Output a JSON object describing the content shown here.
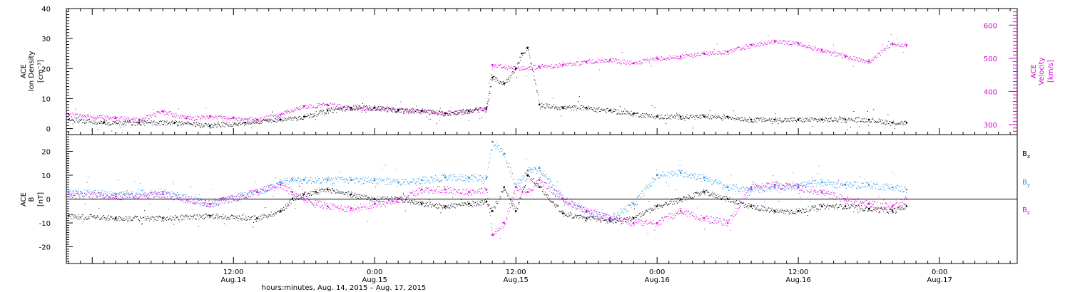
{
  "colors": {
    "black": "#000000",
    "magenta": "#d400d4",
    "blue": "#1e8fe6",
    "axis": "#000000"
  },
  "x_axis": {
    "major_ticks": [
      {
        "time": "12:00",
        "date": "Aug.14",
        "hours": 12
      },
      {
        "time": "0:00",
        "date": "Aug.15",
        "hours": 24
      },
      {
        "time": "12:00",
        "date": "Aug.15",
        "hours": 36
      },
      {
        "time": "0:00",
        "date": "Aug.16",
        "hours": 48
      },
      {
        "time": "12:00",
        "date": "Aug.16",
        "hours": 60
      },
      {
        "time": "0:00",
        "date": "Aug.17",
        "hours": 72
      }
    ],
    "range_hours": [
      -2.2,
      78.6
    ],
    "caption": "hours:minutes, Aug. 14, 2015 – Aug. 17, 2015"
  },
  "chart_data": [
    {
      "type": "scatter",
      "panel": "top",
      "left_label": {
        "line1": "ACE",
        "line2": "Ion Density",
        "line3": "[cm⁻³]"
      },
      "right_label": {
        "line1": "ACE",
        "line2": "Velocity",
        "line3": "[km/s]"
      },
      "ylim_left": [
        -2,
        40
      ],
      "yticks_left": [
        0,
        10,
        20,
        30,
        40
      ],
      "ylim_right": [
        270,
        650
      ],
      "yticks_right": [
        300,
        400,
        500,
        600
      ],
      "series": [
        {
          "key": "density",
          "color": "black",
          "axis": "left",
          "x_hours": [
            -2,
            1,
            4,
            7,
            10,
            13,
            16,
            18,
            20,
            22,
            24,
            26,
            28,
            30,
            32,
            33.5,
            34,
            35,
            36,
            36.5,
            37,
            38,
            40,
            42,
            44,
            46,
            48,
            50,
            52,
            54,
            56,
            58,
            60,
            62,
            64,
            66,
            68,
            69.2
          ],
          "values": [
            3,
            2,
            2,
            2,
            1,
            2,
            3,
            4,
            6,
            7,
            7,
            6,
            6,
            5,
            6,
            7,
            17,
            15,
            20,
            25,
            27,
            8,
            7,
            7,
            6,
            5,
            4,
            4,
            4,
            4,
            3,
            3,
            3,
            3,
            3,
            3,
            2,
            2
          ]
        },
        {
          "key": "velocity",
          "color": "magenta",
          "axis": "right",
          "x_hours": [
            -2,
            2,
            4,
            6,
            8,
            10,
            12,
            14,
            16,
            18,
            20,
            22,
            24,
            26,
            28,
            30,
            32,
            33.5,
            34,
            36,
            38,
            40,
            42,
            44,
            46,
            48,
            50,
            52,
            54,
            56,
            58,
            60,
            62,
            64,
            66,
            68,
            69.2
          ],
          "values": [
            330,
            320,
            315,
            340,
            320,
            325,
            320,
            315,
            330,
            355,
            360,
            350,
            350,
            345,
            340,
            335,
            340,
            345,
            480,
            470,
            475,
            480,
            490,
            495,
            485,
            500,
            505,
            515,
            520,
            540,
            550,
            545,
            525,
            505,
            490,
            545,
            540
          ]
        }
      ]
    },
    {
      "type": "scatter",
      "panel": "bottom",
      "left_label": {
        "line1": "ACE",
        "line2": "B",
        "line3": "[nT]"
      },
      "ylim": [
        -27,
        27
      ],
      "yticks": [
        -20,
        -10,
        0,
        10,
        20
      ],
      "zero_line": 0,
      "legend_position": "right",
      "series": [
        {
          "key": "Bx",
          "label": "B",
          "subscript": "x",
          "color": "black",
          "x_hours": [
            -2,
            2,
            6,
            10,
            14,
            16,
            17,
            18,
            19,
            20,
            22,
            24,
            26,
            28,
            30,
            32,
            33.5,
            34,
            35,
            36,
            37,
            38,
            40,
            42,
            44,
            46,
            48,
            50,
            52,
            54,
            56,
            58,
            60,
            62,
            64,
            66,
            68,
            69.2
          ],
          "values": [
            -7,
            -8,
            -8,
            -7,
            -8,
            -5,
            0,
            2,
            3,
            4,
            2,
            0,
            0,
            -2,
            -3,
            -2,
            -1,
            -5,
            5,
            -5,
            10,
            5,
            -6,
            -8,
            -9,
            -8,
            -3,
            0,
            3,
            0,
            -3,
            -5,
            -5,
            -3,
            -3,
            -4,
            -5,
            -3
          ]
        },
        {
          "key": "By",
          "label": "B",
          "subscript": "y",
          "color": "blue",
          "x_hours": [
            -2,
            2,
            6,
            10,
            14,
            16,
            17,
            18,
            20,
            22,
            24,
            26,
            28,
            30,
            32,
            33.5,
            34,
            35,
            36,
            37,
            38,
            40,
            42,
            44,
            46,
            48,
            50,
            52,
            54,
            56,
            58,
            60,
            62,
            64,
            66,
            68,
            69.2
          ],
          "values": [
            3,
            2,
            3,
            -2,
            3,
            7,
            8,
            8,
            8,
            8,
            8,
            7,
            8,
            9,
            9,
            9,
            24,
            19,
            5,
            12,
            13,
            0,
            -5,
            -8,
            -2,
            10,
            11,
            9,
            5,
            4,
            5,
            6,
            7,
            6,
            6,
            5,
            4
          ]
        },
        {
          "key": "Bz",
          "label": "B",
          "subscript": "z",
          "color": "magenta",
          "x_hours": [
            -2,
            2,
            6,
            10,
            14,
            16,
            17,
            18,
            20,
            22,
            24,
            26,
            28,
            30,
            32,
            33.5,
            34,
            35,
            36,
            37,
            38,
            40,
            42,
            44,
            46,
            48,
            50,
            52,
            54,
            56,
            58,
            60,
            62,
            64,
            66,
            68,
            69.2
          ],
          "values": [
            2,
            1,
            2,
            -2,
            3,
            6,
            3,
            0,
            -3,
            -4,
            -2,
            0,
            4,
            4,
            3,
            4,
            -15,
            -10,
            5,
            3,
            8,
            0,
            -5,
            -8,
            -10,
            -10,
            -5,
            -8,
            -10,
            5,
            6,
            5,
            3,
            0,
            -2,
            -3,
            0
          ]
        }
      ]
    }
  ]
}
